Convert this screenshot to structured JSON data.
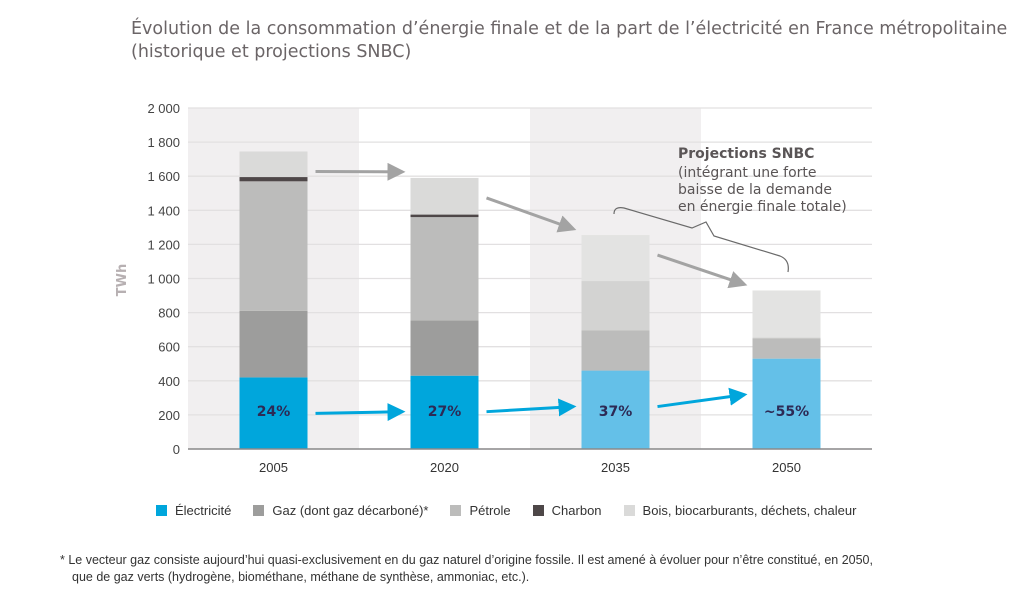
{
  "chart_data": {
    "type": "bar",
    "stacked": true,
    "title": "Évolution de la consommation d’énergie finale et de la part de l’électricité en France métropolitaine (historique et projections SNBC)",
    "title_line1": "Évolution de la consommation d’énergie finale et de la part de l’électricité en France métropolitaine",
    "title_line2": "(historique et projections SNBC)",
    "ylabel": "TWh",
    "xlabel": "",
    "ylim": [
      0,
      2000
    ],
    "yticks": [
      0,
      200,
      400,
      600,
      800,
      1000,
      1200,
      1400,
      1600,
      1800,
      2000
    ],
    "ytick_labels": [
      "0",
      "200",
      "400",
      "600",
      "800",
      "1 000",
      "1 200",
      "1 400",
      "1 600",
      "1 800",
      "2 000"
    ],
    "categories": [
      "2005",
      "2020",
      "2035",
      "2050"
    ],
    "series": [
      {
        "name": "Électricité",
        "color": "#00a6dc",
        "values": [
          420,
          430,
          460,
          530
        ]
      },
      {
        "name": "Gaz (dont gaz décarboné)*",
        "color": "#9d9d9c",
        "values": [
          390,
          325,
          235,
          120
        ]
      },
      {
        "name": "Pétrole",
        "color": "#bcbcbb",
        "values": [
          760,
          605,
          290,
          5
        ]
      },
      {
        "name": "Charbon",
        "color": "#4e4748",
        "values": [
          25,
          15,
          0,
          0
        ]
      },
      {
        "name": "Bois, biocarburants, déchets, chaleur",
        "color": "#dadad9",
        "values": [
          150,
          215,
          270,
          275
        ]
      }
    ],
    "electricity_share_labels": [
      "24%",
      "27%",
      "37%",
      "~55%"
    ],
    "annotation": {
      "title": "Projections SNBC",
      "lines": [
        "(intégrant une forte",
        "baisse de la demande",
        "en énergie finale totale)"
      ]
    },
    "grid": true,
    "legend_position": "bottom"
  },
  "footnote": {
    "line1": "* Le vecteur gaz consiste aujourd’hui quasi-exclusivement en du gaz naturel d’origine fossile. Il est amené à évoluer pour n’être constitué, en 2050,",
    "line2": "que de gaz verts (hydrogène, biométhane, méthane de synthèse, ammoniac, etc.)."
  }
}
